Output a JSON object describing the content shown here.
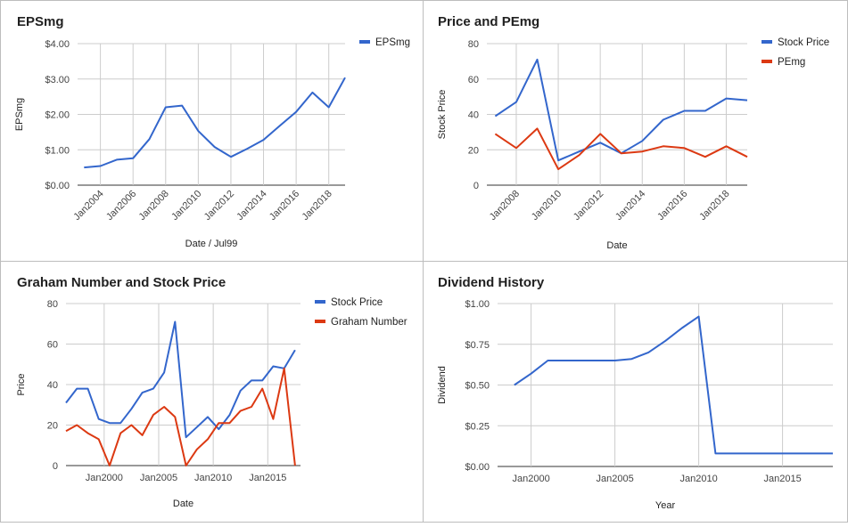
{
  "chart_data": [
    {
      "type": "line",
      "title": "EPSmg",
      "xlabel": "Date / Jul99",
      "ylabel": "EPSmg",
      "x_range": [
        2002.6,
        2019.0
      ],
      "ylim": [
        0,
        4
      ],
      "yticks": [
        0,
        1,
        2,
        3,
        4
      ],
      "ytick_labels": [
        "$0.00",
        "$1.00",
        "$2.00",
        "$3.00",
        "$4.00"
      ],
      "xticks": [
        2004,
        2006,
        2008,
        2010,
        2012,
        2014,
        2016,
        2018
      ],
      "xtick_labels": [
        "Jan2004",
        "Jan2006",
        "Jan2008",
        "Jan2010",
        "Jan2012",
        "Jan2014",
        "Jan2016",
        "Jan2018"
      ],
      "xtick_rotated": true,
      "grid": true,
      "legend_position": "right",
      "series": [
        {
          "name": "EPSmg",
          "color": "#3366cc",
          "x": [
            2003,
            2004,
            2005,
            2006,
            2007,
            2008,
            2009,
            2010,
            2011,
            2012,
            2013,
            2014,
            2015,
            2016,
            2017,
            2018,
            2019
          ],
          "values": [
            0.5,
            0.54,
            0.72,
            0.76,
            1.3,
            2.2,
            2.25,
            1.53,
            1.08,
            0.8,
            1.03,
            1.28,
            1.68,
            2.07,
            2.62,
            2.2,
            3.04
          ]
        }
      ]
    },
    {
      "type": "line",
      "title": "Price and PEmg",
      "xlabel": "Date",
      "ylabel": "Stock Price",
      "x_range": [
        2006.6,
        2019.0
      ],
      "ylim": [
        0,
        80
      ],
      "yticks": [
        0,
        20,
        40,
        60,
        80
      ],
      "ytick_labels": [
        "0",
        "20",
        "40",
        "60",
        "80"
      ],
      "xticks": [
        2008,
        2010,
        2012,
        2014,
        2016,
        2018
      ],
      "xtick_labels": [
        "Jan2008",
        "Jan2010",
        "Jan2012",
        "Jan2014",
        "Jan2016",
        "Jan2018"
      ],
      "xtick_rotated": true,
      "grid": true,
      "legend_position": "right",
      "series": [
        {
          "name": "Stock Price",
          "color": "#3366cc",
          "x": [
            2007,
            2008,
            2009,
            2010,
            2011,
            2012,
            2013,
            2014,
            2015,
            2016,
            2017,
            2018,
            2019
          ],
          "values": [
            39,
            47,
            71,
            14,
            19,
            24,
            18,
            25,
            37,
            42,
            42,
            49,
            48
          ]
        },
        {
          "name": "PEmg",
          "color": "#dc3912",
          "x": [
            2007,
            2008,
            2009,
            2010,
            2011,
            2012,
            2013,
            2014,
            2015,
            2016,
            2017,
            2018,
            2019
          ],
          "values": [
            29,
            21,
            32,
            9,
            17,
            29,
            18,
            19,
            22,
            21,
            16,
            22,
            16
          ]
        }
      ]
    },
    {
      "type": "line",
      "title": "Graham Number and Stock Price",
      "xlabel": "Date",
      "ylabel": "Price",
      "x_range": [
        1996.5,
        2018.0
      ],
      "ylim": [
        0,
        80
      ],
      "yticks": [
        0,
        20,
        40,
        60,
        80
      ],
      "ytick_labels": [
        "0",
        "20",
        "40",
        "60",
        "80"
      ],
      "xticks": [
        2000,
        2005,
        2010,
        2015
      ],
      "xtick_labels": [
        "Jan2000",
        "Jan2005",
        "Jan2010",
        "Jan2015"
      ],
      "xtick_rotated": false,
      "grid": true,
      "legend_position": "right",
      "series": [
        {
          "name": "Stock Price",
          "color": "#3366cc",
          "x": [
            1996.5,
            1997.5,
            1998.5,
            1999.5,
            2000.5,
            2001.5,
            2002.5,
            2003.5,
            2004.5,
            2005.5,
            2006.5,
            2007.5,
            2008.5,
            2009.5,
            2010.5,
            2011.5,
            2012.5,
            2013.5,
            2014.5,
            2015.5,
            2016.5,
            2017.5
          ],
          "values": [
            31,
            38,
            38,
            23,
            21,
            21,
            28,
            36,
            38,
            46,
            71,
            14,
            19,
            24,
            18,
            25,
            37,
            42,
            42,
            49,
            48,
            57
          ]
        },
        {
          "name": "Graham Number",
          "color": "#dc3912",
          "x": [
            1996.5,
            1997.5,
            1998.5,
            1999.5,
            2000.5,
            2001.5,
            2002.5,
            2003.5,
            2004.5,
            2005.5,
            2006.5,
            2007.5,
            2008.5,
            2009.5,
            2010.5,
            2011.5,
            2012.5,
            2013.5,
            2014.5,
            2015.5,
            2016.5,
            2017.5
          ],
          "values": [
            17,
            20,
            16,
            13,
            0,
            16,
            20,
            15,
            25,
            29,
            24,
            0,
            8,
            13,
            21,
            21,
            27,
            29,
            38,
            23,
            48,
            0
          ]
        }
      ]
    },
    {
      "type": "line",
      "title": "Dividend History",
      "xlabel": "Year",
      "ylabel": "Dividend",
      "x_range": [
        1998.0,
        2018.0
      ],
      "ylim": [
        0,
        1
      ],
      "yticks": [
        0,
        0.25,
        0.5,
        0.75,
        1
      ],
      "ytick_labels": [
        "$0.00",
        "$0.25",
        "$0.50",
        "$0.75",
        "$1.00"
      ],
      "xticks": [
        2000,
        2005,
        2010,
        2015
      ],
      "xtick_labels": [
        "Jan2000",
        "Jan2005",
        "Jan2010",
        "Jan2015"
      ],
      "xtick_rotated": false,
      "grid": true,
      "legend_position": "none",
      "series": [
        {
          "name": "",
          "color": "#3366cc",
          "x": [
            1999,
            2000,
            2001,
            2002,
            2003,
            2004,
            2005,
            2006,
            2007,
            2008,
            2009,
            2010,
            2011,
            2012,
            2013,
            2014,
            2015,
            2016,
            2017,
            2018
          ],
          "values": [
            0.5,
            0.57,
            0.65,
            0.65,
            0.65,
            0.65,
            0.65,
            0.66,
            0.7,
            0.77,
            0.85,
            0.92,
            0.08,
            0.08,
            0.08,
            0.08,
            0.08,
            0.08,
            0.08,
            0.08
          ]
        }
      ]
    }
  ]
}
